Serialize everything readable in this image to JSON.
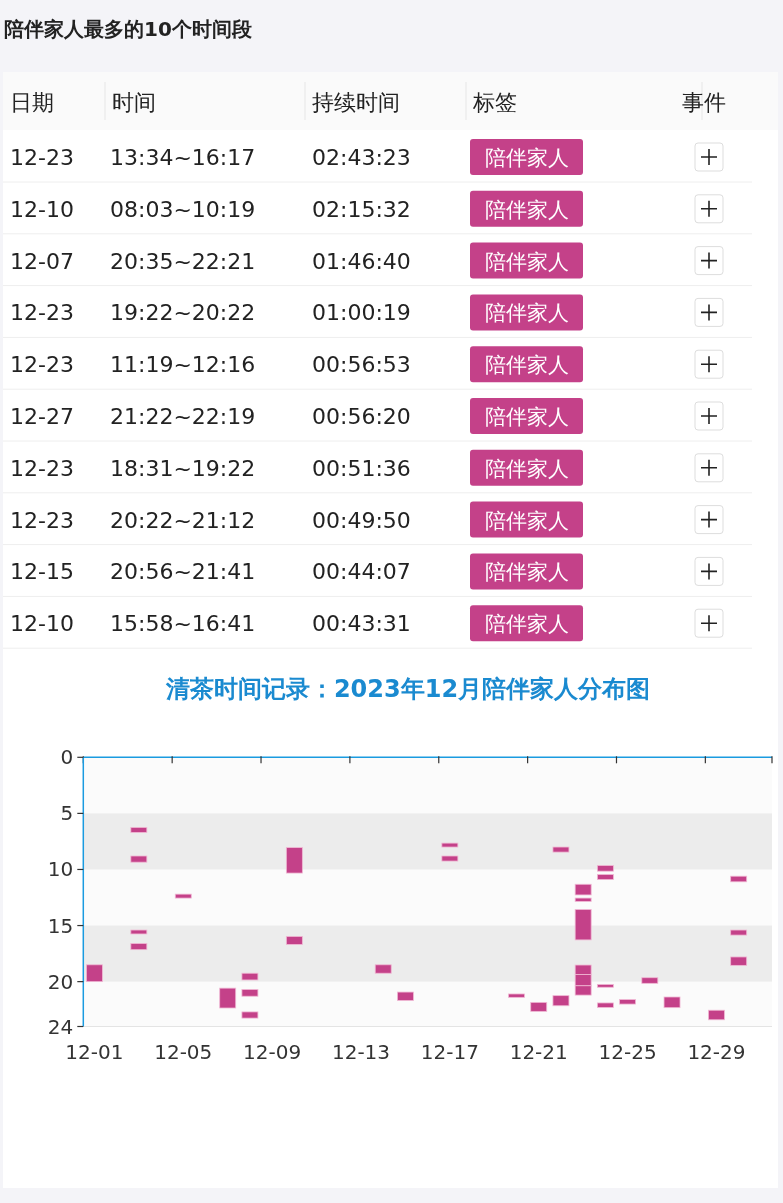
{
  "chart_data": [
    {
      "type": "other",
      "title": "陪伴家人最多的10个时间段",
      "categories": [
        "日期",
        "时间",
        "持续时间",
        "标签",
        "事件"
      ],
      "cell_labels": [
        [
          "12-23",
          "13:34~16:17",
          "02:43:23",
          "陪伴家人",
          null
        ],
        [
          "12-10",
          "08:03~10:19",
          "02:15:32",
          "陪伴家人",
          null
        ],
        [
          "12-07",
          "20:35~22:21",
          "01:46:40",
          "陪伴家人",
          null
        ],
        [
          "12-23",
          "19:22~20:22",
          "01:00:19",
          "陪伴家人",
          null
        ],
        [
          "12-23",
          "11:19~12:16",
          "00:56:53",
          "陪伴家人",
          null
        ],
        [
          "12-27",
          "21:22~22:19",
          "00:56:20",
          "陪伴家人",
          null
        ],
        [
          "12-23",
          "18:31~19:22",
          "00:51:36",
          "陪伴家人",
          null
        ],
        [
          "12-23",
          "20:22~21:12",
          "00:49:50",
          "陪伴家人",
          null
        ],
        [
          "12-15",
          "20:56~21:41",
          "00:44:07",
          "陪伴家人",
          null
        ],
        [
          "12-10",
          "15:58~16:41",
          "00:43:31",
          "陪伴家人",
          null
        ]
      ]
    },
    {
      "type": "bar",
      "title": "清茶时间记录：2023年12月陪伴家人分布图",
      "categories": [
        "12-01",
        null,
        null,
        null,
        "12-05",
        null,
        null,
        null,
        "12-09",
        null,
        null,
        null,
        "12-13",
        null,
        null,
        null,
        "12-17",
        null,
        null,
        null,
        "12-21",
        null,
        null,
        null,
        "12-25",
        null,
        null,
        null,
        "12-29",
        null,
        null
      ],
      "ylim": [
        24,
        0
      ],
      "yticks": [
        0,
        5,
        10,
        15,
        20,
        24
      ],
      "bands": [
        {
          "axis": "y",
          "from": 5,
          "to": 10,
          "color": "#ececec"
        },
        {
          "axis": "y",
          "from": 15,
          "to": 20,
          "color": "#ececec"
        }
      ],
      "series": [
        {
          "color": "#c44189",
          "base": [
            18.5,
            null,
            6.25,
            null,
            12.2,
            null,
            20.58,
            19.25,
            null,
            8.05,
            null,
            null,
            null,
            18.5,
            20.93,
            null,
            7.65,
            null,
            null,
            21.1,
            21.85,
            8.0,
            11.32,
            9.65,
            21.6,
            19.65,
            21.37,
            null,
            22.55,
            10.6,
            null
          ],
          "values": [
            1.5,
            null,
            0.45,
            null,
            0.35,
            null,
            1.77,
            0.6,
            null,
            2.27,
            null,
            null,
            null,
            0.75,
            0.75,
            null,
            0.35,
            null,
            null,
            0.3,
            0.8,
            0.45,
            0.95,
            0.5,
            0.4,
            0.5,
            0.95,
            null,
            0.85,
            0.5,
            null
          ]
        },
        {
          "color": "#c44189",
          "base": [
            null,
            null,
            8.8,
            null,
            null,
            null,
            null,
            20.7,
            null,
            15.97,
            null,
            null,
            null,
            null,
            null,
            null,
            8.8,
            null,
            null,
            null,
            null,
            21.25,
            12.55,
            10.45,
            null,
            null,
            null,
            null,
            null,
            15.4,
            null
          ],
          "values": [
            null,
            null,
            0.55,
            null,
            null,
            null,
            null,
            0.6,
            null,
            0.71,
            null,
            null,
            null,
            null,
            null,
            null,
            0.45,
            null,
            null,
            null,
            null,
            0.9,
            0.3,
            0.45,
            null,
            null,
            null,
            null,
            null,
            0.45,
            null
          ]
        },
        {
          "color": "#c44189",
          "base": [
            null,
            null,
            15.4,
            null,
            null,
            null,
            null,
            22.7,
            null,
            null,
            null,
            null,
            null,
            null,
            null,
            null,
            null,
            null,
            null,
            null,
            null,
            null,
            13.57,
            20.25,
            null,
            null,
            null,
            null,
            null,
            17.8,
            null
          ],
          "values": [
            null,
            null,
            0.35,
            null,
            null,
            null,
            null,
            0.55,
            null,
            null,
            null,
            null,
            null,
            null,
            null,
            null,
            null,
            null,
            null,
            null,
            null,
            null,
            2.71,
            0.25,
            null,
            null,
            null,
            null,
            null,
            0.75,
            null
          ]
        },
        {
          "color": "#c44189",
          "base": [
            null,
            null,
            16.6,
            null,
            null,
            null,
            null,
            null,
            null,
            null,
            null,
            null,
            null,
            null,
            null,
            null,
            null,
            null,
            null,
            null,
            null,
            null,
            18.52,
            21.9,
            null,
            null,
            null,
            null,
            null,
            null,
            null
          ],
          "values": [
            null,
            null,
            0.55,
            null,
            null,
            null,
            null,
            null,
            null,
            null,
            null,
            null,
            null,
            null,
            null,
            null,
            null,
            null,
            null,
            null,
            null,
            null,
            0.85,
            0.4,
            null,
            null,
            null,
            null,
            null,
            null,
            null
          ]
        },
        {
          "color": "#c44189",
          "base": [
            null,
            null,
            null,
            null,
            null,
            null,
            null,
            null,
            null,
            null,
            null,
            null,
            null,
            null,
            null,
            null,
            null,
            null,
            null,
            null,
            null,
            null,
            19.37,
            null,
            null,
            null,
            null,
            null,
            null,
            null,
            null
          ],
          "values": [
            null,
            null,
            null,
            null,
            null,
            null,
            null,
            null,
            null,
            null,
            null,
            null,
            null,
            null,
            null,
            null,
            null,
            null,
            null,
            null,
            null,
            null,
            1.0,
            null,
            null,
            null,
            null,
            null,
            null,
            null,
            null
          ]
        },
        {
          "color": "#c44189",
          "base": [
            null,
            null,
            null,
            null,
            null,
            null,
            null,
            null,
            null,
            null,
            null,
            null,
            null,
            null,
            null,
            null,
            null,
            null,
            null,
            null,
            null,
            null,
            20.37,
            null,
            null,
            null,
            null,
            null,
            null,
            null,
            null
          ],
          "values": [
            null,
            null,
            null,
            null,
            null,
            null,
            null,
            null,
            null,
            null,
            null,
            null,
            null,
            null,
            null,
            null,
            null,
            null,
            null,
            null,
            null,
            null,
            0.83,
            null,
            null,
            null,
            null,
            null,
            null,
            null,
            null
          ]
        }
      ]
    }
  ]
}
